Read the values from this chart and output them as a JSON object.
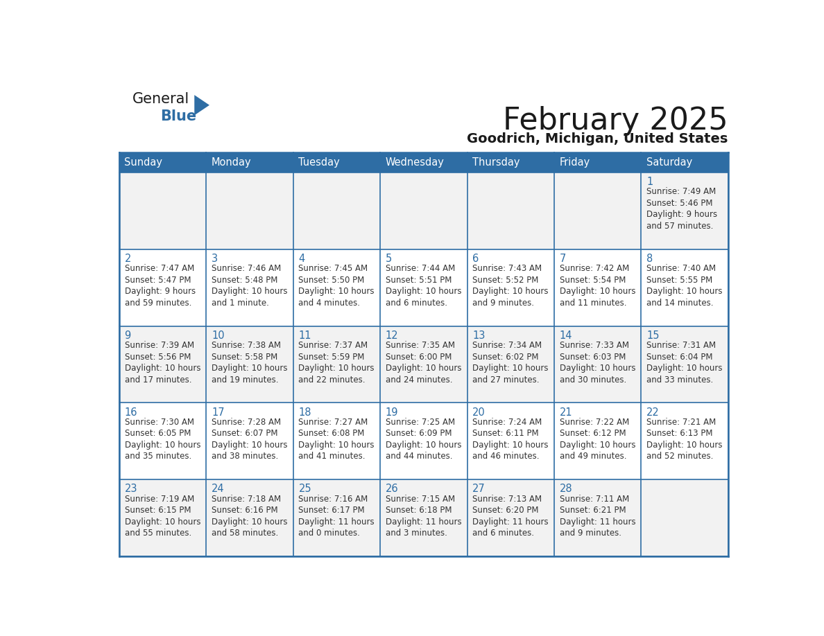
{
  "title": "February 2025",
  "subtitle": "Goodrich, Michigan, United States",
  "header_bg": "#2E6DA4",
  "header_text_color": "#FFFFFF",
  "cell_bg_odd": "#F2F2F2",
  "cell_bg_even": "#FFFFFF",
  "border_color": "#2E6DA4",
  "day_headers": [
    "Sunday",
    "Monday",
    "Tuesday",
    "Wednesday",
    "Thursday",
    "Friday",
    "Saturday"
  ],
  "title_color": "#1a1a1a",
  "subtitle_color": "#1a1a1a",
  "day_num_color": "#2E6DA4",
  "cell_text_color": "#333333",
  "logo_general_color": "#1a1a1a",
  "logo_blue_color": "#2E6DA4",
  "weeks": [
    [
      {
        "day": null,
        "info": ""
      },
      {
        "day": null,
        "info": ""
      },
      {
        "day": null,
        "info": ""
      },
      {
        "day": null,
        "info": ""
      },
      {
        "day": null,
        "info": ""
      },
      {
        "day": null,
        "info": ""
      },
      {
        "day": "1",
        "info": "Sunrise: 7:49 AM\nSunset: 5:46 PM\nDaylight: 9 hours\nand 57 minutes."
      }
    ],
    [
      {
        "day": "2",
        "info": "Sunrise: 7:47 AM\nSunset: 5:47 PM\nDaylight: 9 hours\nand 59 minutes."
      },
      {
        "day": "3",
        "info": "Sunrise: 7:46 AM\nSunset: 5:48 PM\nDaylight: 10 hours\nand 1 minute."
      },
      {
        "day": "4",
        "info": "Sunrise: 7:45 AM\nSunset: 5:50 PM\nDaylight: 10 hours\nand 4 minutes."
      },
      {
        "day": "5",
        "info": "Sunrise: 7:44 AM\nSunset: 5:51 PM\nDaylight: 10 hours\nand 6 minutes."
      },
      {
        "day": "6",
        "info": "Sunrise: 7:43 AM\nSunset: 5:52 PM\nDaylight: 10 hours\nand 9 minutes."
      },
      {
        "day": "7",
        "info": "Sunrise: 7:42 AM\nSunset: 5:54 PM\nDaylight: 10 hours\nand 11 minutes."
      },
      {
        "day": "8",
        "info": "Sunrise: 7:40 AM\nSunset: 5:55 PM\nDaylight: 10 hours\nand 14 minutes."
      }
    ],
    [
      {
        "day": "9",
        "info": "Sunrise: 7:39 AM\nSunset: 5:56 PM\nDaylight: 10 hours\nand 17 minutes."
      },
      {
        "day": "10",
        "info": "Sunrise: 7:38 AM\nSunset: 5:58 PM\nDaylight: 10 hours\nand 19 minutes."
      },
      {
        "day": "11",
        "info": "Sunrise: 7:37 AM\nSunset: 5:59 PM\nDaylight: 10 hours\nand 22 minutes."
      },
      {
        "day": "12",
        "info": "Sunrise: 7:35 AM\nSunset: 6:00 PM\nDaylight: 10 hours\nand 24 minutes."
      },
      {
        "day": "13",
        "info": "Sunrise: 7:34 AM\nSunset: 6:02 PM\nDaylight: 10 hours\nand 27 minutes."
      },
      {
        "day": "14",
        "info": "Sunrise: 7:33 AM\nSunset: 6:03 PM\nDaylight: 10 hours\nand 30 minutes."
      },
      {
        "day": "15",
        "info": "Sunrise: 7:31 AM\nSunset: 6:04 PM\nDaylight: 10 hours\nand 33 minutes."
      }
    ],
    [
      {
        "day": "16",
        "info": "Sunrise: 7:30 AM\nSunset: 6:05 PM\nDaylight: 10 hours\nand 35 minutes."
      },
      {
        "day": "17",
        "info": "Sunrise: 7:28 AM\nSunset: 6:07 PM\nDaylight: 10 hours\nand 38 minutes."
      },
      {
        "day": "18",
        "info": "Sunrise: 7:27 AM\nSunset: 6:08 PM\nDaylight: 10 hours\nand 41 minutes."
      },
      {
        "day": "19",
        "info": "Sunrise: 7:25 AM\nSunset: 6:09 PM\nDaylight: 10 hours\nand 44 minutes."
      },
      {
        "day": "20",
        "info": "Sunrise: 7:24 AM\nSunset: 6:11 PM\nDaylight: 10 hours\nand 46 minutes."
      },
      {
        "day": "21",
        "info": "Sunrise: 7:22 AM\nSunset: 6:12 PM\nDaylight: 10 hours\nand 49 minutes."
      },
      {
        "day": "22",
        "info": "Sunrise: 7:21 AM\nSunset: 6:13 PM\nDaylight: 10 hours\nand 52 minutes."
      }
    ],
    [
      {
        "day": "23",
        "info": "Sunrise: 7:19 AM\nSunset: 6:15 PM\nDaylight: 10 hours\nand 55 minutes."
      },
      {
        "day": "24",
        "info": "Sunrise: 7:18 AM\nSunset: 6:16 PM\nDaylight: 10 hours\nand 58 minutes."
      },
      {
        "day": "25",
        "info": "Sunrise: 7:16 AM\nSunset: 6:17 PM\nDaylight: 11 hours\nand 0 minutes."
      },
      {
        "day": "26",
        "info": "Sunrise: 7:15 AM\nSunset: 6:18 PM\nDaylight: 11 hours\nand 3 minutes."
      },
      {
        "day": "27",
        "info": "Sunrise: 7:13 AM\nSunset: 6:20 PM\nDaylight: 11 hours\nand 6 minutes."
      },
      {
        "day": "28",
        "info": "Sunrise: 7:11 AM\nSunset: 6:21 PM\nDaylight: 11 hours\nand 9 minutes."
      },
      {
        "day": null,
        "info": ""
      }
    ]
  ]
}
